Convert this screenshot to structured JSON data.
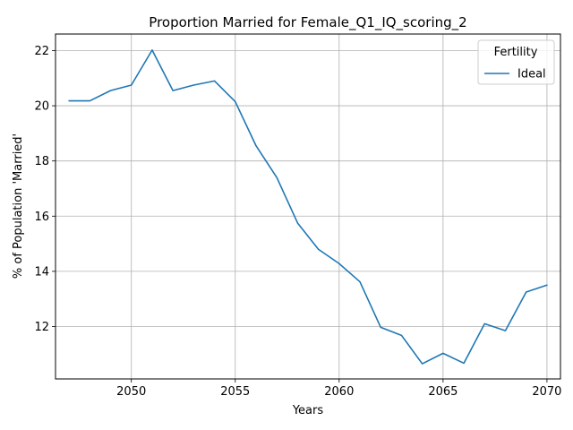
{
  "chart_data": {
    "type": "line",
    "title": "Proportion Married for Female_Q1_IQ_scoring_2",
    "xlabel": "Years",
    "ylabel": "% of Population 'Married'",
    "xlim": [
      2046.35,
      2070.65
    ],
    "ylim": [
      10.1,
      22.6
    ],
    "xticks": [
      2050,
      2055,
      2060,
      2065,
      2070
    ],
    "yticks": [
      12,
      14,
      16,
      18,
      20,
      22
    ],
    "grid": true,
    "legend": {
      "title": "Fertility",
      "placement": "top-right"
    },
    "series": [
      {
        "name": "Ideal",
        "color": "#1f77b4",
        "x": [
          2047,
          2048,
          2049,
          2050,
          2051,
          2052,
          2053,
          2054,
          2055,
          2056,
          2057,
          2058,
          2059,
          2060,
          2061,
          2062,
          2063,
          2064,
          2065,
          2066,
          2067,
          2068,
          2069,
          2070
        ],
        "y": [
          20.18,
          20.18,
          20.55,
          20.75,
          22.02,
          20.55,
          20.75,
          20.9,
          20.15,
          18.55,
          17.4,
          15.75,
          14.8,
          14.28,
          13.62,
          11.97,
          11.68,
          10.65,
          11.03,
          10.67,
          12.1,
          11.85,
          13.25,
          13.5
        ]
      }
    ]
  }
}
